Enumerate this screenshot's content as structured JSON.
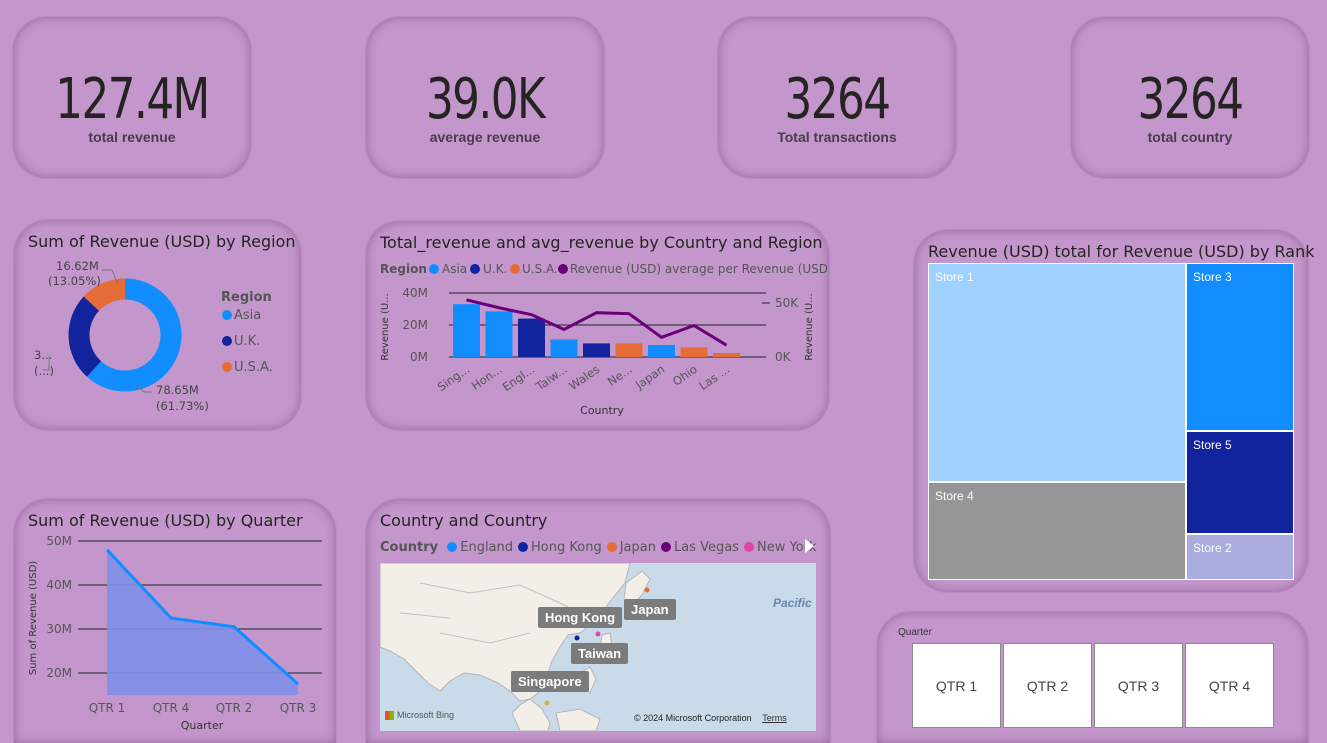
{
  "kpis": {
    "total_revenue": {
      "value": "127.4M",
      "label": "total revenue"
    },
    "average_revenue": {
      "value": "39.0K",
      "label": "average revenue"
    },
    "total_transactions": {
      "value": "3264",
      "label": "Total transactions"
    },
    "total_country": {
      "value": "3264",
      "label": "total country"
    }
  },
  "region_chart": {
    "title": "Sum of Revenue (USD) by Region",
    "legend_title": "Region",
    "labels": {
      "orange": [
        "16.62M",
        "(13.05%)"
      ],
      "navy": [
        "3...",
        "(...)"
      ],
      "blue": [
        "78.65M",
        "(61.73%)"
      ]
    }
  },
  "country_chart": {
    "title": "Total_revenue and avg_revenue by Country and Region",
    "legend_title": "Region",
    "legend_line": "Revenue (USD) average per Revenue (USD)",
    "xlabel": "Country",
    "ylabel_left": "Revenue (U...",
    "ylabel_right": "Revenue (U...",
    "left_ticks": [
      "40M",
      "20M",
      "0M"
    ],
    "right_ticks": [
      "50K",
      "0K"
    ]
  },
  "quarter_chart": {
    "title": "Sum of Revenue (USD) by Quarter",
    "xlabel": "Quarter",
    "ylabel": "Sum of Revenue (USD)",
    "y_ticks": [
      "50M",
      "40M",
      "30M",
      "20M"
    ]
  },
  "map_card": {
    "title": "Country and Country",
    "legend_title": "Country",
    "legend": [
      {
        "name": "England",
        "color": "#118DFF"
      },
      {
        "name": "Hong Kong",
        "color": "#12239E"
      },
      {
        "name": "Japan",
        "color": "#E66C37"
      },
      {
        "name": "Las Vegas",
        "color": "#6B007B"
      },
      {
        "name": "New York",
        "color": "#E044A7"
      }
    ],
    "labels": {
      "hong_kong": "Hong Kong",
      "japan": "Japan",
      "taiwan": "Taiwan",
      "singapore": "Singapore",
      "pacific": "Pacific"
    },
    "footer": {
      "brand": "Microsoft Bing",
      "copyright": "© 2024 Microsoft Corporation",
      "terms": "Terms"
    }
  },
  "treemap": {
    "title": "Revenue (USD) total for Revenue (USD) by Rank",
    "items": [
      "Store 1",
      "Store 3",
      "Store 5",
      "Store 4",
      "Store 2"
    ]
  },
  "slicer": {
    "title": "Quarter",
    "options": [
      "QTR 1",
      "QTR 2",
      "QTR 3",
      "QTR 4"
    ]
  },
  "colors": {
    "asia": "#118DFF",
    "uk": "#12239E",
    "usa": "#E66C37",
    "avg_line": "#6B007B",
    "background": "#C497CC"
  },
  "chart_data": [
    {
      "type": "pie",
      "title": "Sum of Revenue (USD) by Region",
      "categories": [
        "Asia",
        "U.K.",
        "U.S.A."
      ],
      "values": [
        78.65,
        32.1,
        16.62
      ],
      "percent": [
        61.73,
        25.22,
        13.05
      ],
      "unit": "M"
    },
    {
      "type": "bar",
      "title": "Total_revenue and avg_revenue by Country and Region",
      "categories": [
        "Sing...",
        "Hon...",
        "Engl...",
        "Taiw...",
        "Wales",
        "Ne...",
        "Japan",
        "Ohio",
        "Las ..."
      ],
      "series": [
        {
          "name": "total revenue",
          "values": [
            33,
            28.5,
            24,
            11,
            8.5,
            8.5,
            7.5,
            6,
            2.5
          ],
          "regions": [
            "Asia",
            "Asia",
            "U.K.",
            "Asia",
            "U.K.",
            "U.S.A.",
            "Asia",
            "U.S.A.",
            "U.S.A."
          ]
        },
        {
          "name": "Revenue (USD) average per Revenue (USD)",
          "type": "line",
          "values": [
            58,
            50,
            43,
            28,
            45,
            44,
            20,
            32,
            12
          ]
        }
      ],
      "ylim": [
        0,
        45
      ],
      "ylim_right": [
        0,
        65
      ]
    },
    {
      "type": "area",
      "title": "Sum of Revenue (USD) by Quarter",
      "categories": [
        "QTR 1",
        "QTR 4",
        "QTR 2",
        "QTR 3"
      ],
      "values": [
        48,
        32.5,
        30.5,
        17.5
      ],
      "ylim": [
        15,
        50
      ]
    },
    {
      "type": "treemap",
      "title": "Revenue (USD) total for Revenue (USD) by Rank",
      "categories": [
        "Store 1",
        "Store 3",
        "Store 5",
        "Store 4",
        "Store 2"
      ],
      "values": [
        55,
        22,
        13.5,
        22,
        6
      ]
    }
  ]
}
